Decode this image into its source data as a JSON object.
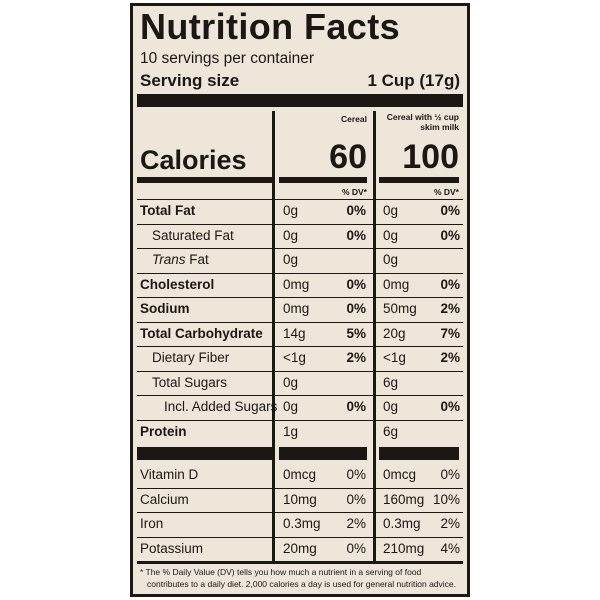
{
  "title": "Nutrition Facts",
  "servings": "10 servings per container",
  "serving_size_label": "Serving size",
  "serving_size_value": "1 Cup (17g)",
  "col1_header": "Cereal",
  "col2_header_line1": "Cereal with ½ cup",
  "col2_header_line2": "skim milk",
  "calories_label": "Calories",
  "calories_1": "60",
  "calories_2": "100",
  "dv_header": "% DV*",
  "rows": [
    {
      "label": "Total Fat",
      "c1": "0g",
      "p1": "0%",
      "c2": "0g",
      "p2": "0%"
    },
    {
      "label": "Saturated Fat",
      "c1": "0g",
      "p1": "0%",
      "c2": "0g",
      "p2": "0%"
    },
    {
      "label_italic": "Trans",
      "label_rest": " Fat",
      "c1": "0g",
      "p1": "",
      "c2": "0g",
      "p2": ""
    },
    {
      "label": "Cholesterol",
      "c1": "0mg",
      "p1": "0%",
      "c2": "0mg",
      "p2": "0%"
    },
    {
      "label": "Sodium",
      "c1": "0mg",
      "p1": "0%",
      "c2": "50mg",
      "p2": "2%"
    },
    {
      "label": "Total Carbohydrate",
      "c1": "14g",
      "p1": "5%",
      "c2": "20g",
      "p2": "7%"
    },
    {
      "label": "Dietary Fiber",
      "c1": "<1g",
      "p1": "2%",
      "c2": "<1g",
      "p2": "2%"
    },
    {
      "label": "Total Sugars",
      "c1": "0g",
      "p1": "",
      "c2": "6g",
      "p2": ""
    },
    {
      "label": "Incl. Added Sugars",
      "c1": "0g",
      "p1": "0%",
      "c2": "0g",
      "p2": "0%"
    },
    {
      "label": "Protein",
      "c1": "1g",
      "p1": "",
      "c2": "6g",
      "p2": ""
    }
  ],
  "vitamins": [
    {
      "label": "Vitamin D",
      "c1": "0mcg",
      "p1": "0%",
      "c2": "0mcg",
      "p2": "0%"
    },
    {
      "label": "Calcium",
      "c1": "10mg",
      "p1": "0%",
      "c2": "160mg",
      "p2": "10%"
    },
    {
      "label": "Iron",
      "c1": "0.3mg",
      "p1": "2%",
      "c2": "0.3mg",
      "p2": "2%"
    },
    {
      "label": "Potassium",
      "c1": "20mg",
      "p1": "0%",
      "c2": "210mg",
      "p2": "4%"
    }
  ],
  "footnote_line1": "* The % Daily Value (DV) tells you how much a nutrient in a serving of food",
  "footnote_line2": "contributes to a daily diet. 2,000 calories a day is used for general nutrition advice."
}
